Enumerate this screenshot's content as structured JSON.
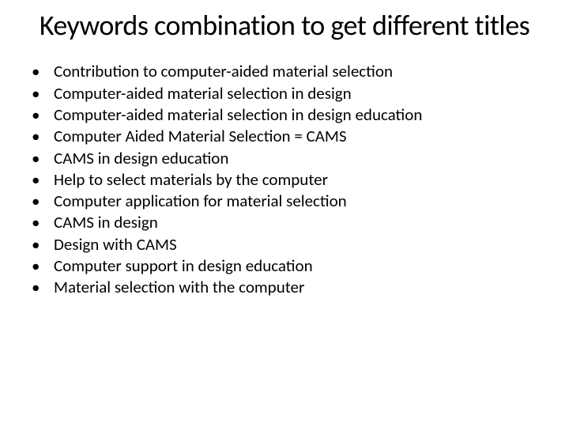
{
  "title": "Keywords combination to get different titles",
  "bullets": [
    "Contribution to computer-aided material selection",
    "Computer-aided material selection in design",
    "Computer-aided material selection in design education",
    "Computer Aided Material Selection = CAMS",
    "CAMS in design education",
    "Help to select materials by the computer",
    "Computer application for material selection",
    "CAMS in design",
    "Design with CAMS",
    "Computer support in design education",
    "Material selection with the computer"
  ],
  "colors": {
    "background": "#ffffff",
    "text": "#000000"
  },
  "typography": {
    "title_fontsize": 36,
    "bullet_fontsize": 21,
    "font_family": "Calibri"
  }
}
